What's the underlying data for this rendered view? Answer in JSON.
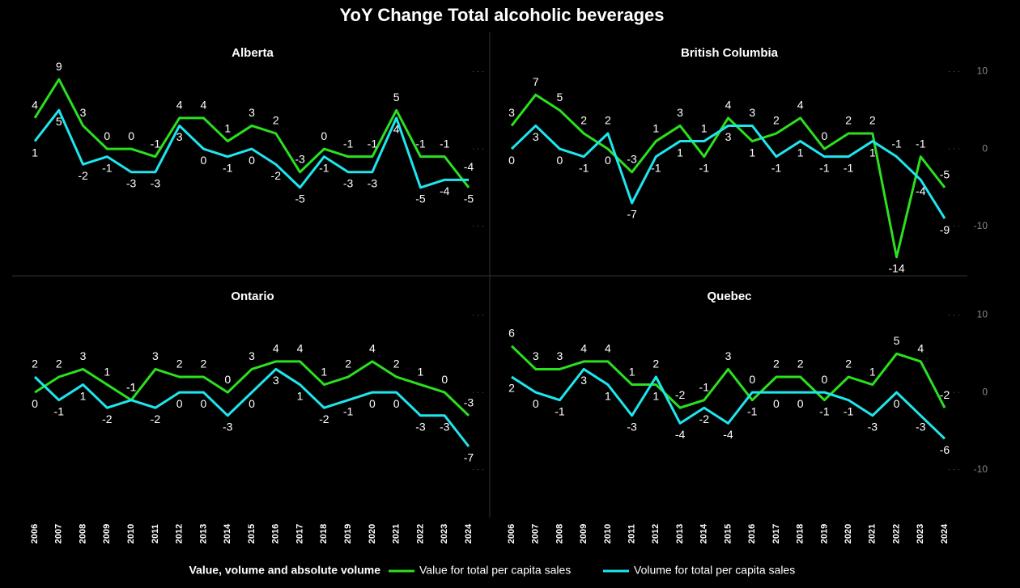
{
  "title": "YoY Change Total alcoholic beverages",
  "legend": {
    "title": "Value, volume and absolute volume",
    "entries": [
      "Value for total per capita sales",
      "Volume for total per capita sales"
    ]
  },
  "chart_data": [
    {
      "type": "line",
      "title": "Alberta",
      "ylim": [
        -16,
        11
      ],
      "yticks": [
        -10,
        0,
        10
      ],
      "ytick_labels": false,
      "series": [
        {
          "color": "#2be01e",
          "values": [
            4,
            9,
            3,
            0,
            0,
            -1,
            4,
            4,
            1,
            3,
            2,
            -3,
            0,
            -1,
            -1,
            5,
            -1,
            -1,
            -5
          ]
        },
        {
          "color": "#1ee6ee",
          "values": [
            1,
            5,
            -2,
            -1,
            -3,
            -3,
            3,
            0,
            -1,
            0,
            -2,
            -5,
            -1,
            -3,
            -3,
            4,
            -5,
            -4,
            -4
          ]
        }
      ]
    },
    {
      "type": "line",
      "title": "British Columbia",
      "ylim": [
        -16,
        11
      ],
      "yticks": [
        -10,
        0,
        10
      ],
      "ytick_labels": true,
      "series": [
        {
          "color": "#2be01e",
          "values": [
            3,
            7,
            5,
            2,
            0,
            -3,
            1,
            3,
            -1,
            4,
            1,
            2,
            4,
            0,
            2,
            2,
            -14,
            -1,
            -5
          ]
        },
        {
          "color": "#1ee6ee",
          "values": [
            0,
            3,
            0,
            -1,
            2,
            -7,
            -1,
            1,
            1,
            3,
            3,
            -1,
            1,
            -1,
            -1,
            1,
            -1,
            -4,
            -9
          ]
        }
      ]
    },
    {
      "type": "line",
      "title": "Ontario",
      "ylim": [
        -16,
        11
      ],
      "yticks": [
        -10,
        0,
        10
      ],
      "ytick_labels": false,
      "categories": [
        "2006",
        "2007",
        "2008",
        "2009",
        "2010",
        "2011",
        "2012",
        "2013",
        "2014",
        "2015",
        "2016",
        "2017",
        "2018",
        "2019",
        "2020",
        "2021",
        "2022",
        "2023",
        "2024"
      ],
      "series": [
        {
          "color": "#2be01e",
          "values": [
            0,
            2,
            3,
            1,
            -1,
            3,
            2,
            2,
            0,
            3,
            4,
            4,
            1,
            2,
            4,
            2,
            1,
            0,
            -3
          ]
        },
        {
          "color": "#1ee6ee",
          "values": [
            2,
            -1,
            1,
            -2,
            -1,
            -2,
            0,
            0,
            -3,
            0,
            3,
            1,
            -2,
            -1,
            0,
            0,
            -3,
            -3,
            -7
          ]
        }
      ]
    },
    {
      "type": "line",
      "title": "Quebec",
      "ylim": [
        -16,
        11
      ],
      "yticks": [
        -10,
        0,
        10
      ],
      "ytick_labels": true,
      "categories": [
        "2006",
        "2007",
        "2008",
        "2009",
        "2010",
        "2011",
        "2012",
        "2013",
        "2014",
        "2015",
        "2016",
        "2017",
        "2018",
        "2019",
        "2020",
        "2021",
        "2022",
        "2023",
        "2024"
      ],
      "series": [
        {
          "color": "#2be01e",
          "values": [
            6,
            3,
            3,
            4,
            4,
            1,
            1,
            -2,
            -1,
            3,
            -1,
            2,
            2,
            -1,
            2,
            1,
            5,
            4,
            -2
          ]
        },
        {
          "color": "#1ee6ee",
          "values": [
            2,
            0,
            -1,
            3,
            1,
            -3,
            2,
            -4,
            -2,
            -4,
            0,
            0,
            0,
            0,
            -1,
            -3,
            0,
            -3,
            -6
          ]
        }
      ]
    }
  ]
}
